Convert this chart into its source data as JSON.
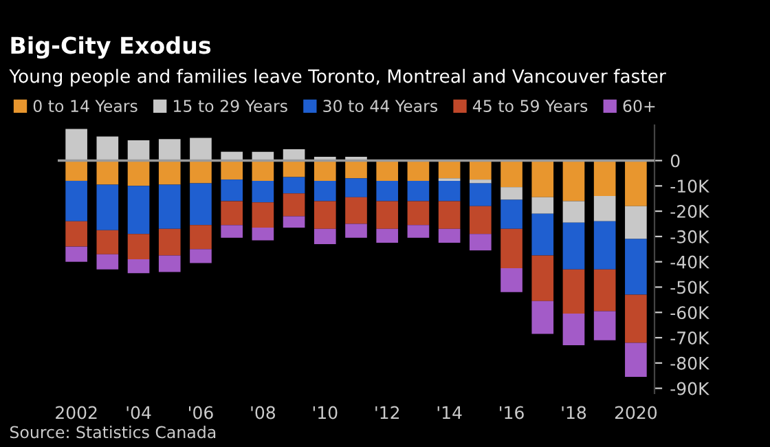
{
  "chart_data": {
    "type": "bar",
    "stacked": true,
    "title": "Big-City Exodus",
    "subtitle": "Young people and families leave Toronto, Montreal and Vancouver faster",
    "categories": [
      "2002",
      null,
      "'04",
      null,
      "'06",
      null,
      "'08",
      null,
      "'10",
      null,
      "'12",
      null,
      "'14",
      null,
      "'16",
      null,
      "'18",
      null,
      "2020"
    ],
    "series": [
      {
        "name": "0 to 14 Years",
        "color": "#e8962e",
        "values": [
          -8,
          -9.5,
          -10,
          -9.5,
          -9,
          -7.5,
          -8,
          -6.5,
          -8,
          -7,
          -8,
          -8,
          -7,
          -7.5,
          -10.5,
          -14.5,
          -16,
          -14,
          -18
        ]
      },
      {
        "name": "15 to 29 Years",
        "color": "#c8c8c8",
        "values": [
          12.5,
          9.5,
          8,
          8.5,
          9,
          3.5,
          3.5,
          4.5,
          1.5,
          1.5,
          0,
          0,
          -1,
          -1.5,
          -5,
          -6.5,
          -8.5,
          -10,
          -13
        ]
      },
      {
        "name": "30 to 44 Years",
        "color": "#1f5fd0",
        "values": [
          -16,
          -18,
          -19,
          -17.5,
          -16.5,
          -8.5,
          -8.5,
          -6.5,
          -8,
          -7.5,
          -8,
          -8,
          -8,
          -9,
          -11.5,
          -16.5,
          -18.5,
          -19,
          -22
        ]
      },
      {
        "name": "45 to 59 Years",
        "color": "#c0482a",
        "values": [
          -10,
          -9.5,
          -10,
          -10.5,
          -9.5,
          -9.5,
          -10,
          -9,
          -11,
          -10.5,
          -11,
          -9.5,
          -11,
          -11,
          -15.5,
          -18,
          -17.5,
          -16.5,
          -19
        ]
      },
      {
        "name": "60+",
        "color": "#a35bc8",
        "values": [
          -6,
          -6,
          -5.5,
          -6.5,
          -5.5,
          -5,
          -5,
          -4.5,
          -6,
          -5.5,
          -5.5,
          -5,
          -5.5,
          -6.5,
          -9.5,
          -13,
          -12.5,
          -11.5,
          -13.5
        ]
      }
    ],
    "ylim": [
      -92,
      14
    ],
    "yticks": [
      {
        "value": 0,
        "label": "0"
      },
      {
        "value": -10,
        "label": "-10K"
      },
      {
        "value": -20,
        "label": "-20K"
      },
      {
        "value": -30,
        "label": "-30K"
      },
      {
        "value": -40,
        "label": "-40K"
      },
      {
        "value": -50,
        "label": "-50K"
      },
      {
        "value": -60,
        "label": "-60K"
      },
      {
        "value": -70,
        "label": "-70K"
      },
      {
        "value": -80,
        "label": "-80K"
      },
      {
        "value": -90,
        "label": "-90K"
      }
    ],
    "ref_lines": [
      {
        "axis": "y",
        "value": 0,
        "color": "#9a9a9a"
      }
    ],
    "legend": "top left",
    "grid": false,
    "annotations": [
      "Source: Statistics Canada"
    ]
  }
}
